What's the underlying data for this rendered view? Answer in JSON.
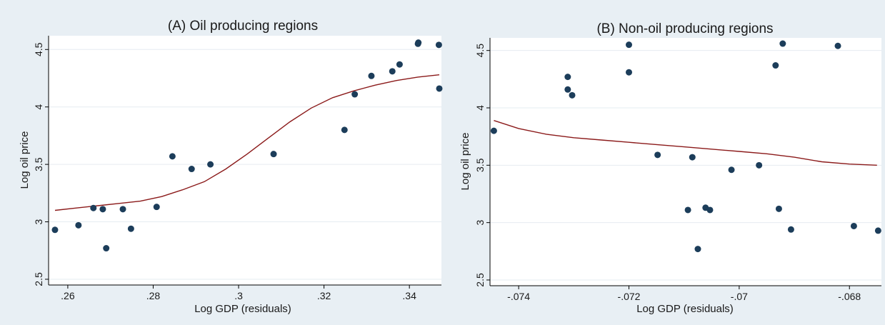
{
  "chart_data": [
    {
      "type": "scatter",
      "title": "(A) Oil producing regions",
      "xlabel": "Log GDP (residuals)",
      "ylabel": "Log oil price",
      "xlim": [
        0.2555,
        0.3475
      ],
      "ylim": [
        2.45,
        4.62
      ],
      "xticks": [
        0.26,
        0.28,
        0.3,
        0.32,
        0.34
      ],
      "xtick_labels": [
        ".26",
        ".28",
        ".3",
        ".32",
        ".34"
      ],
      "yticks": [
        2.5,
        3,
        3.5,
        4,
        4.5
      ],
      "ytick_labels": [
        "2.5",
        "3",
        "3.5",
        "4",
        "4.5"
      ],
      "grid": "horizontal",
      "colors": {
        "frame_bg": "#e8eff4",
        "plot_bg": "#ffffff",
        "points": "#1c3d5a",
        "fit_line": "#8b1a1a",
        "grid": "#e6ecf1"
      },
      "points": {
        "x": [
          0.257,
          0.2625,
          0.266,
          0.2682,
          0.269,
          0.2729,
          0.2748,
          0.2808,
          0.2845,
          0.289,
          0.2934,
          0.3082,
          0.3248,
          0.3272,
          0.3311,
          0.336,
          0.3377,
          0.342,
          0.3421,
          0.3469,
          0.347
        ],
        "y": [
          2.93,
          2.97,
          3.12,
          3.11,
          2.77,
          3.11,
          2.94,
          3.13,
          3.57,
          3.46,
          3.5,
          3.59,
          3.8,
          4.11,
          4.27,
          4.31,
          4.37,
          4.55,
          4.56,
          4.54,
          4.16
        ]
      },
      "fit": {
        "x": [
          0.257,
          0.262,
          0.267,
          0.272,
          0.277,
          0.282,
          0.287,
          0.292,
          0.297,
          0.302,
          0.307,
          0.312,
          0.317,
          0.322,
          0.327,
          0.332,
          0.337,
          0.342,
          0.347
        ],
        "y": [
          3.1,
          3.12,
          3.14,
          3.16,
          3.18,
          3.22,
          3.28,
          3.35,
          3.46,
          3.59,
          3.73,
          3.87,
          3.99,
          4.08,
          4.14,
          4.19,
          4.23,
          4.26,
          4.28
        ]
      }
    },
    {
      "type": "scatter",
      "title": "(B) Non-oil producing regions",
      "xlabel": "Log GDP (residuals)",
      "ylabel": "Log oil price",
      "xlim": [
        -0.07452,
        -0.06742
      ],
      "ylim": [
        2.45,
        4.61
      ],
      "xticks": [
        -0.074,
        -0.072,
        -0.07,
        -0.068
      ],
      "xtick_labels": [
        "-.074",
        "-.072",
        "-.07",
        "-.068"
      ],
      "yticks": [
        2.5,
        3,
        3.5,
        4,
        4.5
      ],
      "ytick_labels": [
        "2.5",
        "3",
        "3.5",
        "4",
        "4.5"
      ],
      "grid": "horizontal",
      "colors": {
        "frame_bg": "#e8eff4",
        "plot_bg": "#ffffff",
        "points": "#1c3d5a",
        "fit_line": "#8b1a1a",
        "grid": "#e6ecf1"
      },
      "points": {
        "x": [
          -0.07445,
          -0.07311,
          -0.07311,
          -0.07303,
          -0.072,
          -0.072,
          -0.07148,
          -0.07093,
          -0.07085,
          -0.07075,
          -0.07061,
          -0.07053,
          -0.07014,
          -0.06964,
          -0.06934,
          -0.06928,
          -0.06921,
          -0.06906,
          -0.06821,
          -0.06792,
          -0.06748
        ],
        "y": [
          3.8,
          4.27,
          4.16,
          4.11,
          4.55,
          4.31,
          3.59,
          3.11,
          3.57,
          2.77,
          3.13,
          3.11,
          3.46,
          3.5,
          4.37,
          3.12,
          4.56,
          2.94,
          4.54,
          2.97,
          2.93
        ]
      },
      "fit": {
        "x": [
          -0.07445,
          -0.074,
          -0.0735,
          -0.073,
          -0.0725,
          -0.072,
          -0.0715,
          -0.071,
          -0.0705,
          -0.07,
          -0.0695,
          -0.069,
          -0.0685,
          -0.068,
          -0.0675
        ],
        "y": [
          3.89,
          3.82,
          3.77,
          3.74,
          3.72,
          3.7,
          3.68,
          3.66,
          3.64,
          3.62,
          3.6,
          3.57,
          3.53,
          3.51,
          3.5
        ]
      }
    }
  ]
}
